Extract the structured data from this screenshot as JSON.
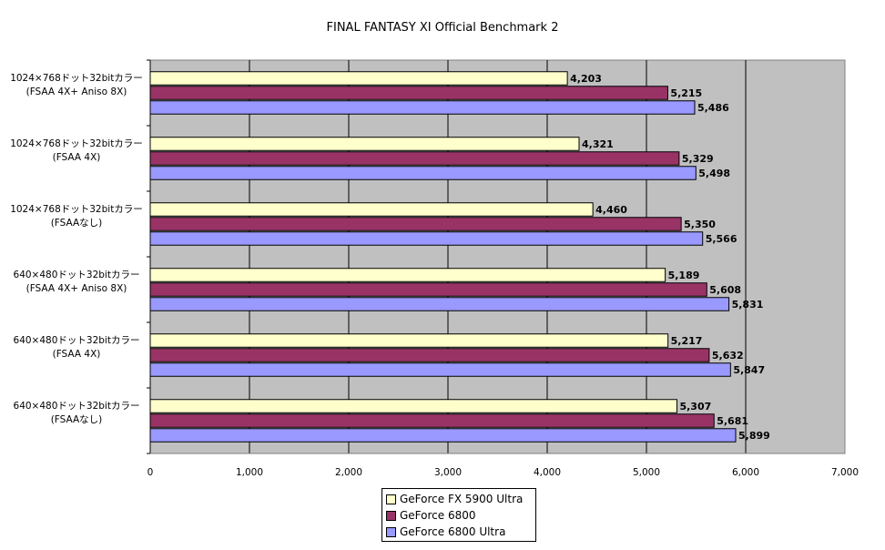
{
  "chart_data": {
    "type": "bar",
    "orientation": "horizontal",
    "title": "FINAL FANTASY XI Official Benchmark 2",
    "categories": [
      [
        "1024×768ドット32bitカラー",
        "(FSAA 4X+ Aniso 8X)"
      ],
      [
        "1024×768ドット32bitカラー",
        "(FSAA 4X)"
      ],
      [
        "1024×768ドット32bitカラー",
        "(FSAAなし)"
      ],
      [
        "640×480ドット32bitカラー",
        "(FSAA 4X+ Aniso 8X)"
      ],
      [
        "640×480ドット32bitカラー",
        "(FSAA 4X)"
      ],
      [
        "640×480ドット32bitカラー",
        "(FSAAなし)"
      ]
    ],
    "series": [
      {
        "name": "GeForce FX 5900 Ultra",
        "color": "#ffffcc",
        "values": [
          4203,
          4321,
          4460,
          5189,
          5217,
          5307
        ],
        "labels": [
          "4,203",
          "4,321",
          "4,460",
          "5,189",
          "5,217",
          "5,307"
        ]
      },
      {
        "name": "GeForce 6800",
        "color": "#993366",
        "values": [
          5215,
          5329,
          5350,
          5608,
          5632,
          5681
        ],
        "labels": [
          "5,215",
          "5,329",
          "5,350",
          "5,608",
          "5,632",
          "5,681"
        ]
      },
      {
        "name": "GeForce 6800 Ultra",
        "color": "#9999ff",
        "values": [
          5486,
          5498,
          5566,
          5831,
          5847,
          5899
        ],
        "labels": [
          "5,486",
          "5,498",
          "5,566",
          "5,831",
          "5,847",
          "5,899"
        ]
      }
    ],
    "xlim": [
      0,
      7000
    ],
    "xticks": [
      0,
      1000,
      2000,
      3000,
      4000,
      5000,
      6000,
      7000
    ],
    "xtick_labels": [
      "0",
      "1,000",
      "2,000",
      "3,000",
      "4,000",
      "5,000",
      "6,000",
      "7,000"
    ],
    "plot_background": "#c0c0c0",
    "grid": true,
    "legend_position": "bottom"
  }
}
